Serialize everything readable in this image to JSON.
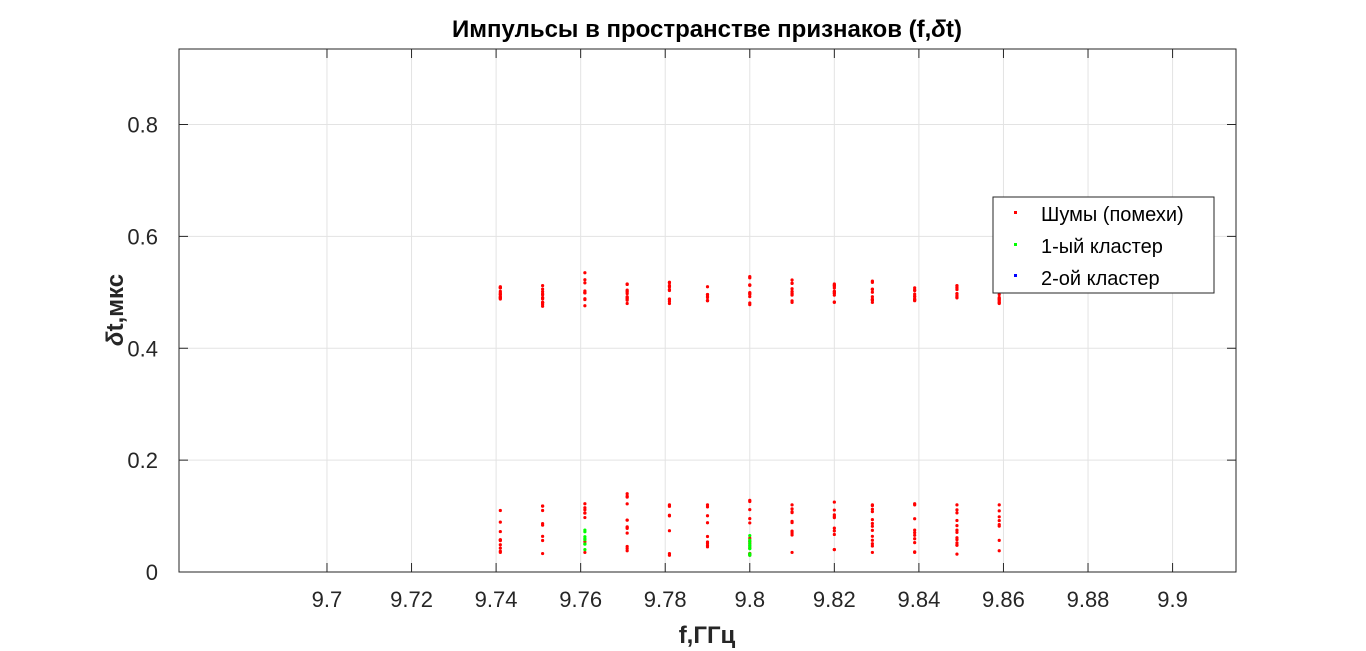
{
  "chart_data": {
    "type": "scatter",
    "title_part1": "Импульсы в пространстве признаков (f,",
    "title_symbol": "δ",
    "title_part2": "t)",
    "xlabel": "f,ГГц",
    "ylabel_symbol": "δ",
    "ylabel_text": "t,мкс",
    "xlim": [
      9.665,
      9.915
    ],
    "ylim": [
      0,
      0.935
    ],
    "grid": true,
    "legend_position": "right",
    "x_ticks": [
      9.7,
      9.72,
      9.74,
      9.76,
      9.78,
      9.8,
      9.82,
      9.84,
      9.86,
      9.88,
      9.9
    ],
    "x_tick_labels": [
      "9.7",
      "9.72",
      "9.74",
      "9.76",
      "9.78",
      "9.8",
      "9.82",
      "9.84",
      "9.86",
      "9.88",
      "9.9"
    ],
    "y_ticks": [
      0,
      0.2,
      0.4,
      0.6,
      0.8
    ],
    "y_tick_labels": [
      "0",
      "0.2",
      "0.4",
      "0.6",
      "0.8"
    ],
    "series": [
      {
        "name": "Шумы (помехи)",
        "color": "#ff0000",
        "columns": [
          {
            "x": 9.741,
            "high": [
              0.488,
              0.51
            ],
            "low": [
              0.035,
              0.11
            ]
          },
          {
            "x": 9.751,
            "high": [
              0.475,
              0.512
            ],
            "low": [
              0.033,
              0.118
            ]
          },
          {
            "x": 9.761,
            "high": [
              0.476,
              0.535
            ],
            "low": [
              0.035,
              0.122
            ]
          },
          {
            "x": 9.771,
            "high": [
              0.48,
              0.515
            ],
            "low": [
              0.038,
              0.14
            ]
          },
          {
            "x": 9.781,
            "high": [
              0.48,
              0.518
            ],
            "low": [
              0.03,
              0.12
            ]
          },
          {
            "x": 9.79,
            "high": [
              0.485,
              0.51
            ],
            "low": [
              0.045,
              0.12
            ]
          },
          {
            "x": 9.8,
            "high": [
              0.478,
              0.528
            ],
            "low": [
              0.03,
              0.128
            ]
          },
          {
            "x": 9.81,
            "high": [
              0.482,
              0.522
            ],
            "low": [
              0.035,
              0.12
            ]
          },
          {
            "x": 9.82,
            "high": [
              0.482,
              0.515
            ],
            "low": [
              0.04,
              0.125
            ]
          },
          {
            "x": 9.829,
            "high": [
              0.482,
              0.52
            ],
            "low": [
              0.035,
              0.12
            ]
          },
          {
            "x": 9.839,
            "high": [
              0.485,
              0.508
            ],
            "low": [
              0.035,
              0.122
            ]
          },
          {
            "x": 9.849,
            "high": [
              0.49,
              0.512
            ],
            "low": [
              0.032,
              0.12
            ]
          },
          {
            "x": 9.859,
            "high": [
              0.48,
              0.51
            ],
            "low": [
              0.038,
              0.12
            ]
          }
        ]
      },
      {
        "name": "1-ый кластер",
        "color": "#00ff00",
        "columns": [
          {
            "x": 9.761,
            "low": [
              0.04,
              0.075
            ]
          },
          {
            "x": 9.8,
            "low": [
              0.03,
              0.065
            ]
          }
        ]
      },
      {
        "name": "2-ой кластер",
        "color": "#0000ff",
        "columns": []
      }
    ]
  }
}
